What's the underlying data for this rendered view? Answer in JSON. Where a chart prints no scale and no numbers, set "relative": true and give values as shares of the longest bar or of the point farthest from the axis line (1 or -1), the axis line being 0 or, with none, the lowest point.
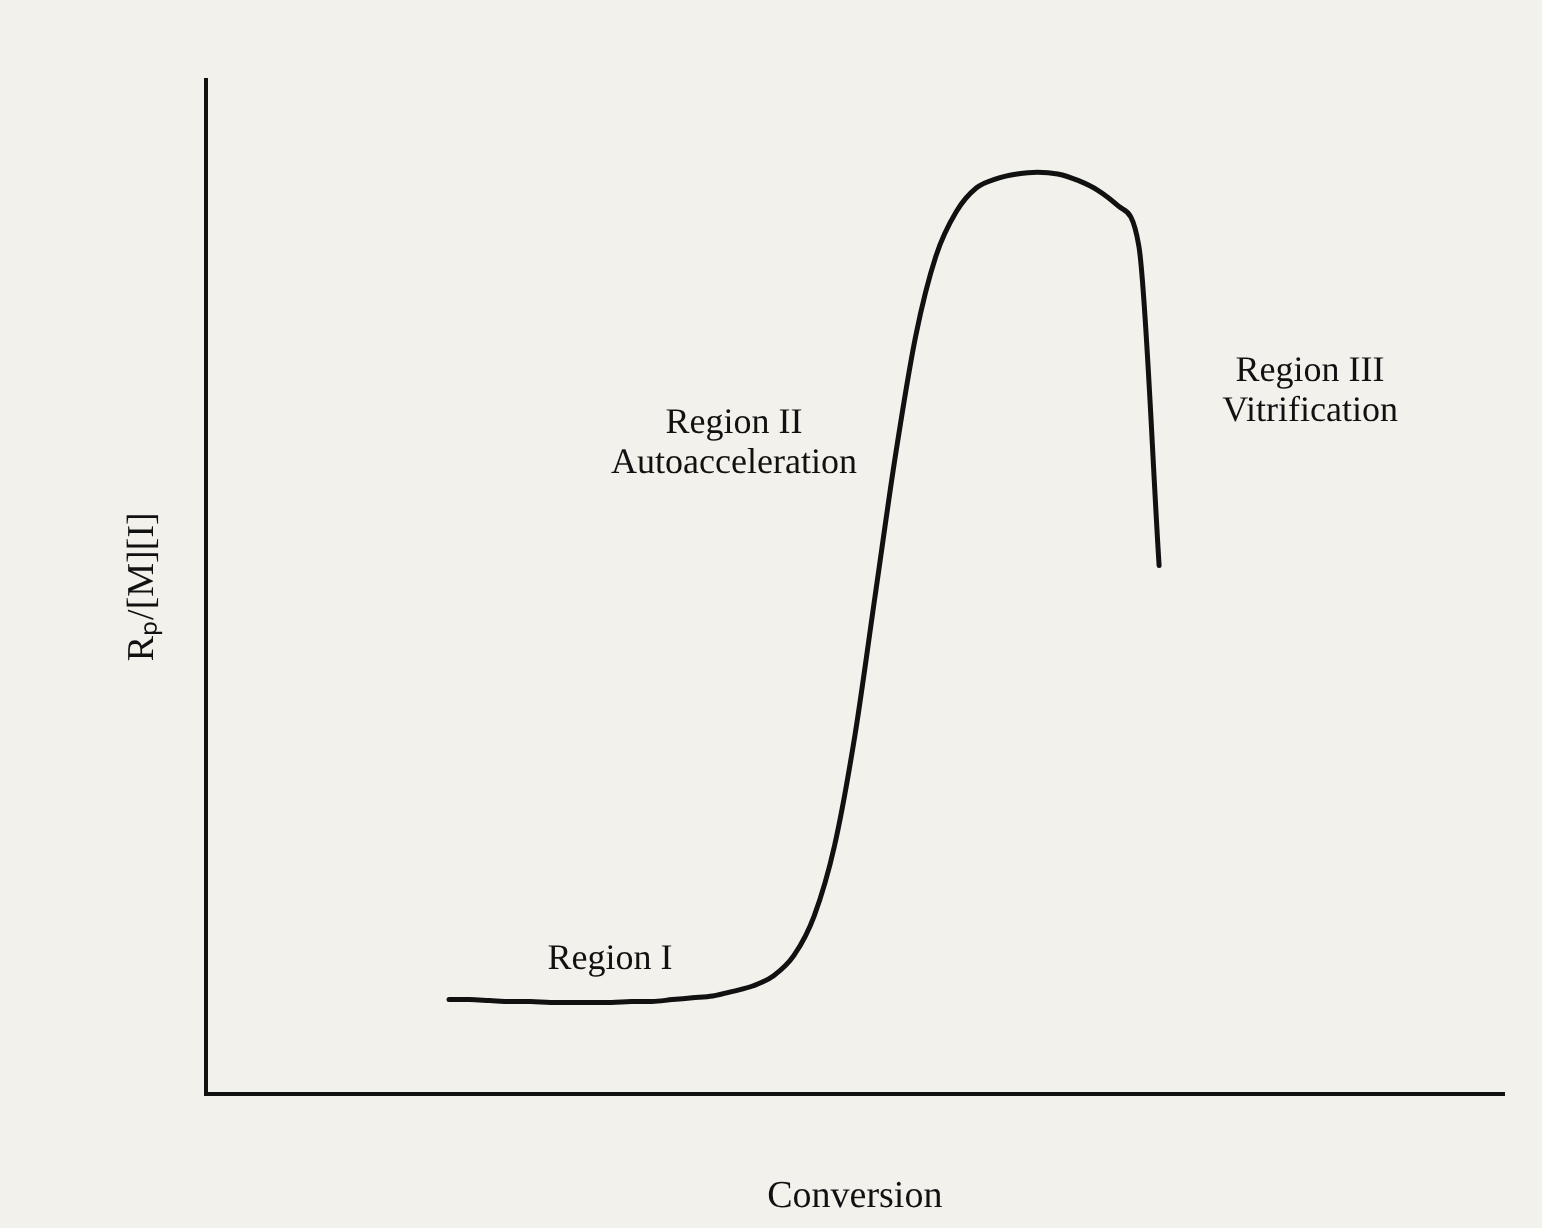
{
  "chart_data": {
    "type": "line",
    "relative": true,
    "xlabel": "Conversion",
    "ylabel": "Rₚ/[M][I]",
    "categories": [
      null,
      null,
      null,
      null,
      null,
      null,
      null,
      null,
      null,
      null,
      null,
      null,
      null,
      null,
      null,
      null,
      null,
      null,
      null,
      null,
      null,
      null,
      null,
      null,
      null,
      null,
      null,
      null,
      null,
      null,
      null,
      null,
      null,
      null,
      null,
      null,
      null,
      null,
      null,
      null,
      null,
      null,
      null,
      null,
      null,
      null,
      null,
      null,
      null,
      null,
      null,
      null,
      null,
      null,
      null,
      null,
      null,
      null,
      null,
      null,
      null,
      null,
      null,
      null,
      null
    ],
    "series": [
      {
        "color": "#111111",
        "values": [
          null,
          null,
          null,
          null,
          null,
          null,
          null,
          null,
          null,
          null,
          null,
          null,
          0.102,
          0.102,
          0.101,
          0.1,
          0.1,
          0.099,
          0.099,
          0.099,
          0.099,
          0.1,
          0.1,
          0.102,
          0.104,
          0.106,
          0.111,
          0.117,
          0.128,
          0.15,
          0.193,
          0.269,
          0.388,
          0.54,
          0.692,
          0.822,
          0.909,
          0.957,
          0.983,
          0.993,
          0.998,
          1,
          0.998,
          0.991,
          0.98,
          0.963,
          0.92,
          0.573,
          null,
          null,
          null,
          null,
          null,
          null,
          null,
          null,
          null,
          null,
          null,
          null,
          null,
          null,
          null,
          null,
          null
        ]
      }
    ],
    "annotations": [
      "Region I",
      "Region II",
      "Autoacceleration",
      "Region III",
      "Vitrification"
    ],
    "grid": false,
    "legend": false,
    "marker": "none",
    "line_style": "solid"
  }
}
